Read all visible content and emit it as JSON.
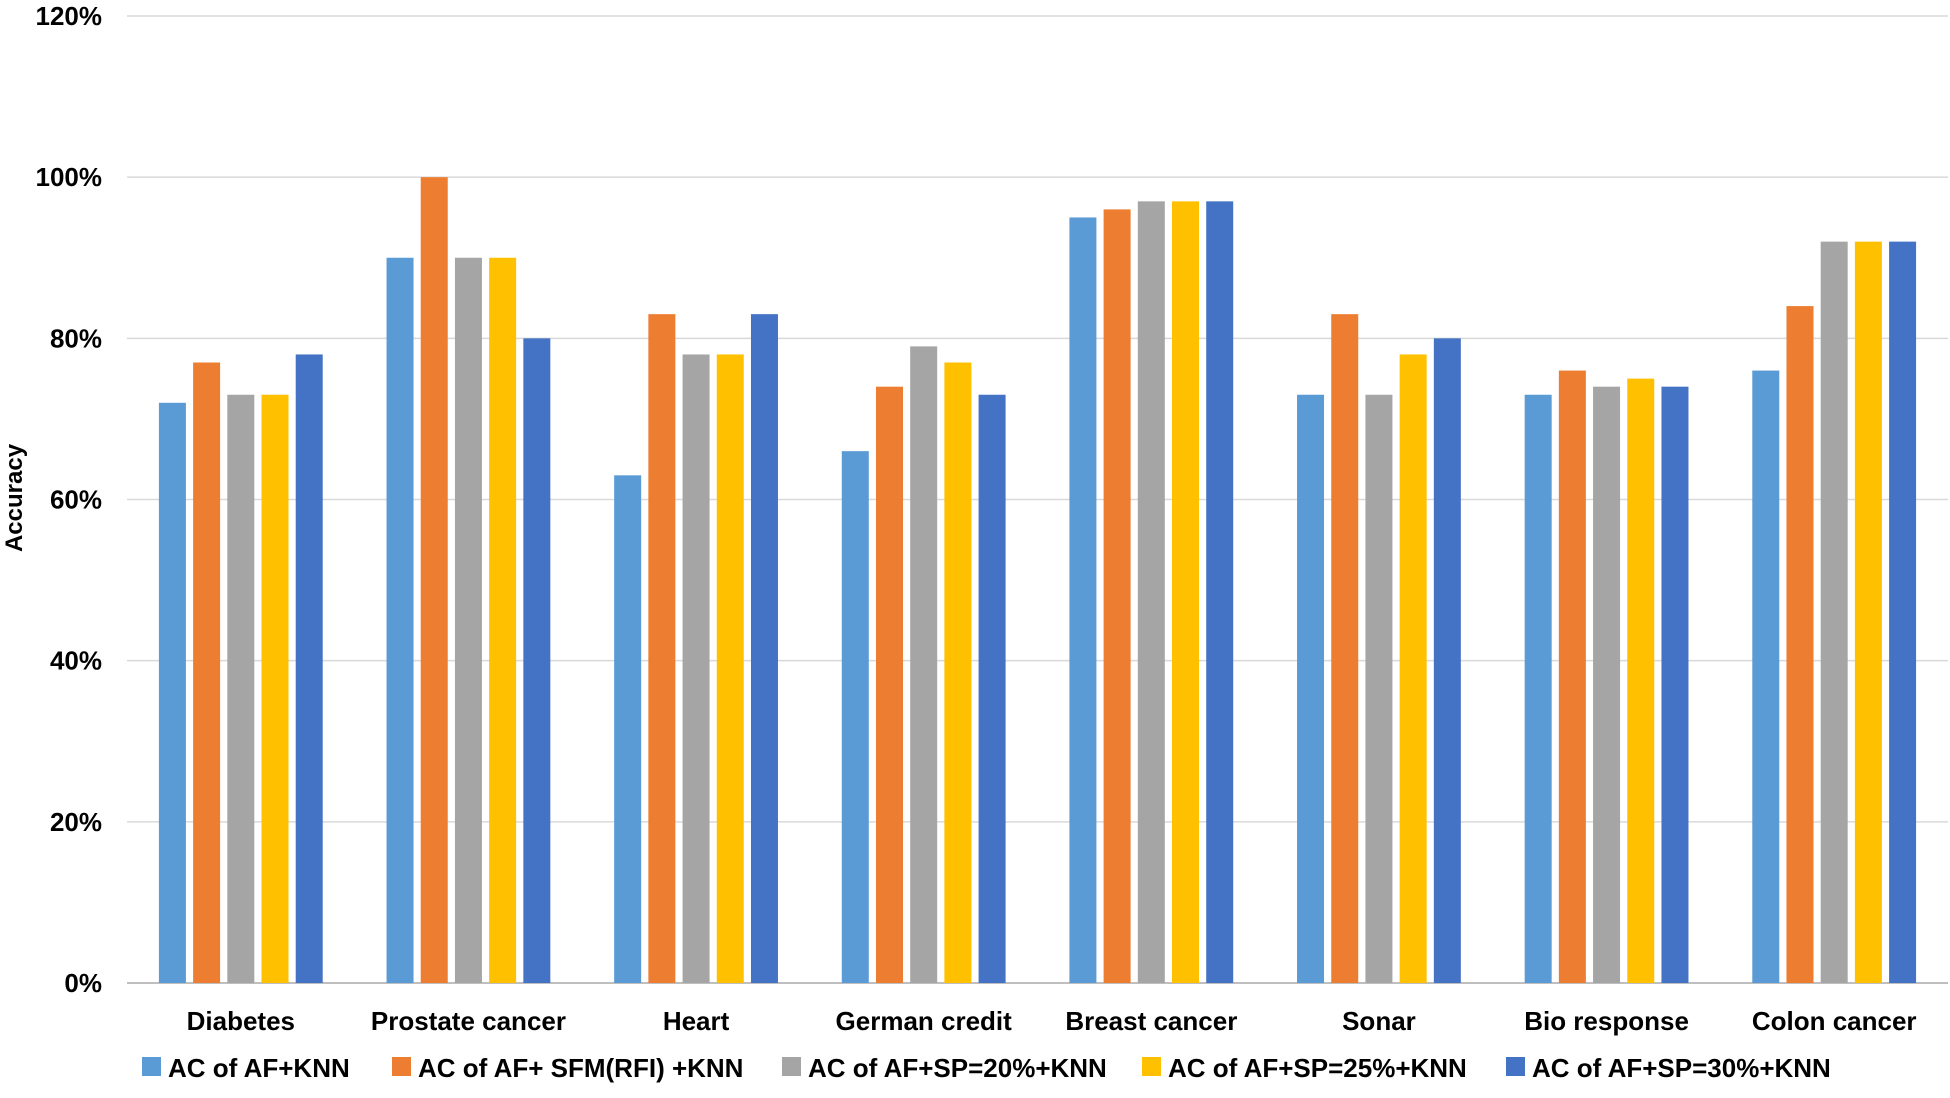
{
  "chart_data": {
    "type": "bar",
    "title": "",
    "xlabel": "",
    "ylabel": "Accuracy",
    "ylim": [
      0,
      120
    ],
    "yticks": [
      0,
      20,
      40,
      60,
      80,
      100,
      120
    ],
    "ytick_labels": [
      "0%",
      "20%",
      "40%",
      "60%",
      "80%",
      "100%",
      "120%"
    ],
    "grid": true,
    "legend_position": "bottom",
    "categories": [
      "Diabetes",
      "Prostate cancer",
      "Heart",
      "German credit",
      "Breast cancer",
      "Sonar",
      "Bio response",
      "Colon cancer"
    ],
    "series": [
      {
        "name": "AC of AF+KNN",
        "color": "#5b9bd5",
        "values": [
          72,
          90,
          63,
          66,
          95,
          73,
          73,
          76
        ]
      },
      {
        "name": "AC of AF+ SFM(RFI) +KNN",
        "color": "#ed7d31",
        "values": [
          77,
          100,
          83,
          74,
          96,
          83,
          76,
          84
        ]
      },
      {
        "name": "AC of AF+SP=20%+KNN",
        "color": "#a5a5a5",
        "values": [
          73,
          90,
          78,
          79,
          97,
          73,
          74,
          92
        ]
      },
      {
        "name": "AC of AF+SP=25%+KNN",
        "color": "#ffc000",
        "values": [
          73,
          90,
          78,
          77,
          97,
          78,
          75,
          92
        ]
      },
      {
        "name": "AC of AF+SP=30%+KNN",
        "color": "#4472c4",
        "values": [
          78,
          80,
          83,
          73,
          97,
          80,
          74,
          92
        ]
      }
    ]
  }
}
